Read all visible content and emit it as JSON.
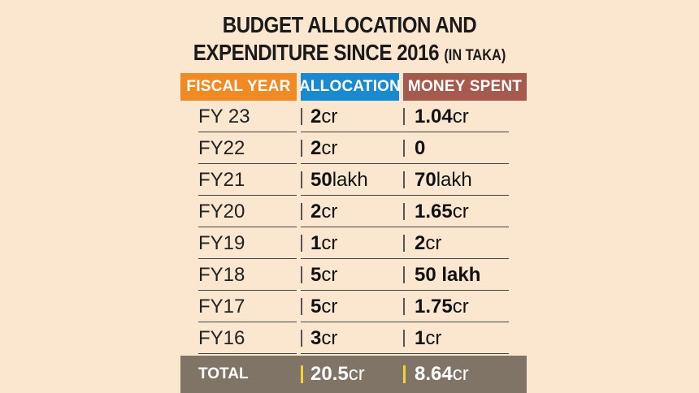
{
  "chart_data": {
    "type": "table",
    "title_line1": "BUDGET ALLOCATION AND",
    "title_line2": "EXPENDITURE SINCE 2016",
    "subtitle": "(IN TAKA)",
    "columns": [
      "FISCAL YEAR",
      "ALLOCATION",
      "MONEY SPENT"
    ],
    "header_colors": [
      "#f08a25",
      "#1a8ad0",
      "#a65a4e"
    ],
    "rows": [
      {
        "year": "FY 23",
        "allocation_num": "2",
        "allocation_unit": "cr",
        "spent_num": "1.04",
        "spent_unit": "cr"
      },
      {
        "year": "FY22",
        "allocation_num": "2",
        "allocation_unit": "cr",
        "spent_num": "0",
        "spent_unit": ""
      },
      {
        "year": "FY21",
        "allocation_num": "50",
        "allocation_unit": " lakh",
        "spent_num": "70",
        "spent_unit": " lakh"
      },
      {
        "year": "FY20",
        "allocation_num": "2",
        "allocation_unit": "cr",
        "spent_num": "1.65",
        "spent_unit": "cr"
      },
      {
        "year": "FY19",
        "allocation_num": "1",
        "allocation_unit": "cr",
        "spent_num": "2",
        "spent_unit": "cr"
      },
      {
        "year": "FY18",
        "allocation_num": "5",
        "allocation_unit": "cr",
        "spent_num": "50 lakh",
        "spent_unit": ""
      },
      {
        "year": "FY17",
        "allocation_num": "5",
        "allocation_unit": "cr",
        "spent_num": "1.75",
        "spent_unit": "cr"
      },
      {
        "year": "FY16",
        "allocation_num": "3",
        "allocation_unit": "cr",
        "spent_num": "1",
        "spent_unit": "cr"
      }
    ],
    "total": {
      "label": "TOTAL",
      "allocation_num": "20.5",
      "allocation_unit": "cr",
      "spent_num": "8.64",
      "spent_unit": "cr"
    },
    "total_bg": "#807466",
    "background": "#fbe6d0"
  }
}
